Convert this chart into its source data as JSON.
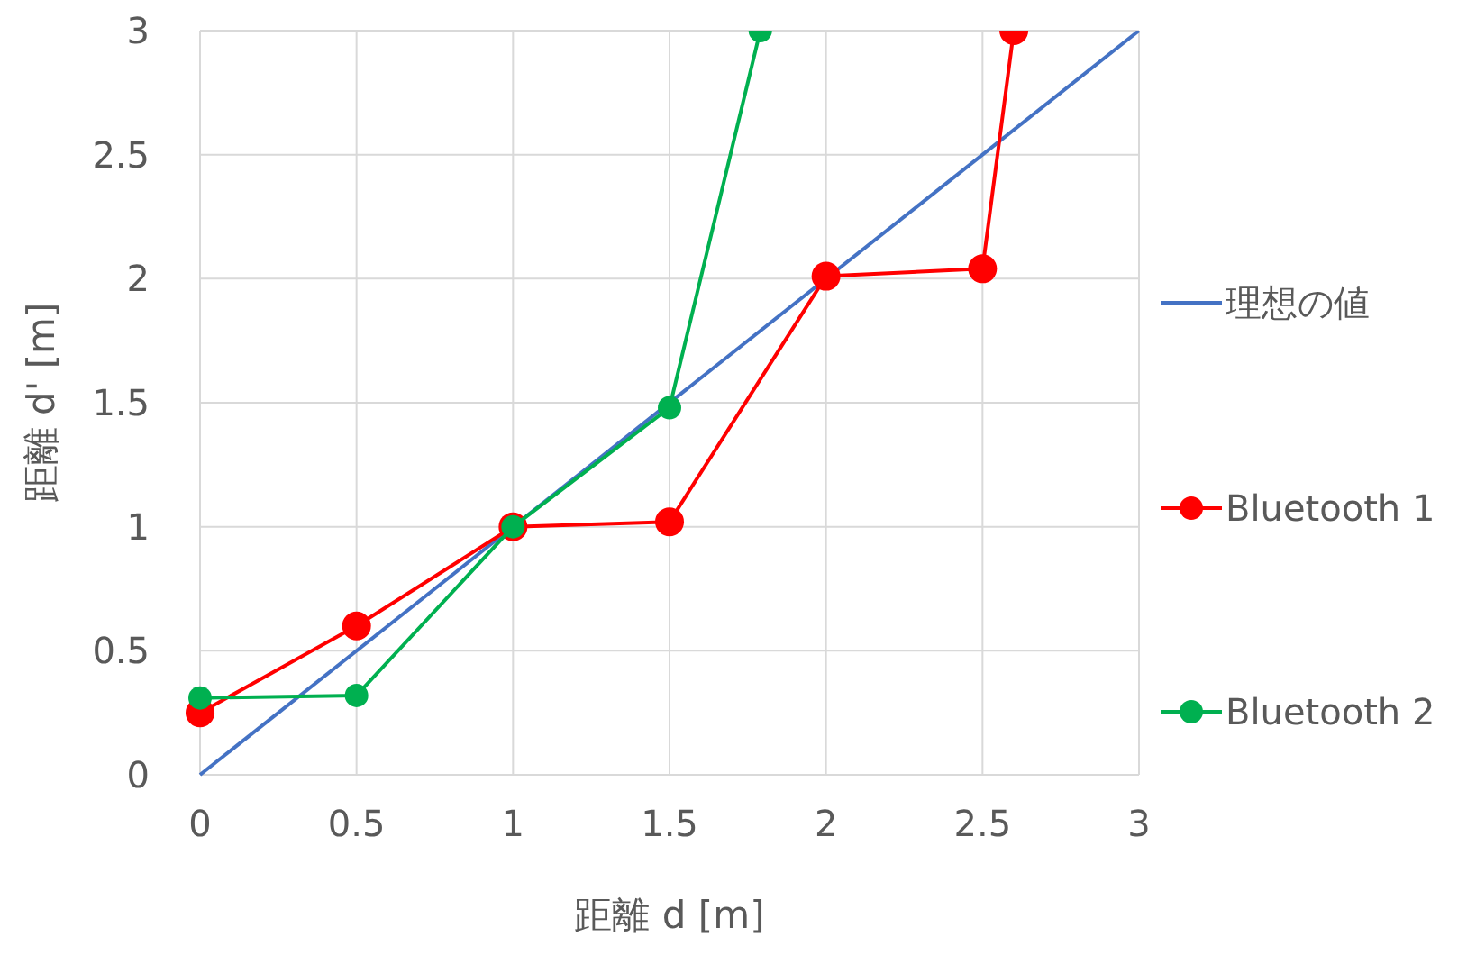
{
  "chart_data": {
    "type": "line",
    "xlabel": "距離 d [m]",
    "ylabel": "距離 d' [m]",
    "xlim": [
      0,
      3
    ],
    "xticks": [
      0,
      0.5,
      1,
      1.5,
      2,
      2.5,
      3
    ],
    "ylim": [
      0,
      3
    ],
    "yticks": [
      0,
      0.5,
      1,
      1.5,
      2,
      2.5,
      3
    ],
    "grid": true,
    "legend": "right",
    "series": [
      {
        "name": "理想の値",
        "color": "#4472c4",
        "x": [
          0,
          3
        ],
        "values": [
          0,
          3
        ],
        "marker": "none"
      },
      {
        "name": "Bluetooth 1",
        "color": "#ff0000",
        "x": [
          0,
          0.5,
          1,
          1.5,
          2,
          2.5,
          2.6
        ],
        "values": [
          0.25,
          0.6,
          1.0,
          1.02,
          2.01,
          2.04,
          3
        ],
        "marker": "circle"
      },
      {
        "name": "Bluetooth 2",
        "color": "#00b050",
        "x": [
          0,
          0.5,
          1,
          1.5,
          1.79
        ],
        "values": [
          0.31,
          0.32,
          1.0,
          1.48,
          3
        ],
        "marker": "circle"
      }
    ]
  }
}
